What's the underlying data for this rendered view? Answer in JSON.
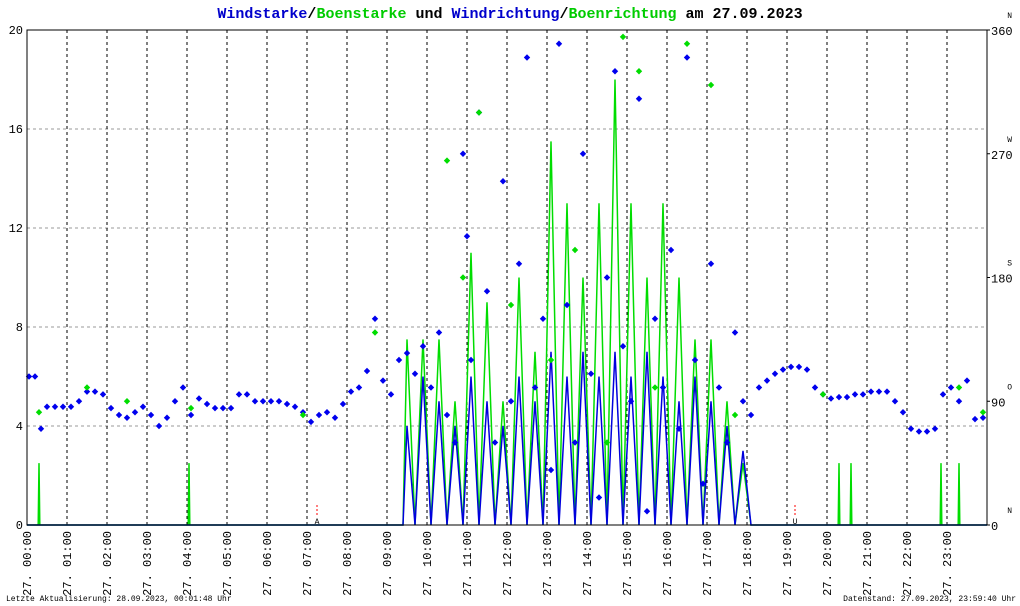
{
  "chart_data": {
    "type": "wind",
    "title_parts": [
      {
        "text": "Windstarke",
        "color": "#0000cc"
      },
      {
        "text": "/",
        "color": "#000000"
      },
      {
        "text": "Boenstarke",
        "color": "#00cc00"
      },
      {
        "text": " und ",
        "color": "#000000"
      },
      {
        "text": "Windrichtung",
        "color": "#0000cc"
      },
      {
        "text": "/",
        "color": "#000000"
      },
      {
        "text": "Boenrichtung",
        "color": "#00cc00"
      },
      {
        "text": " am 27.09.2023",
        "color": "#000000"
      }
    ],
    "footer_left": "Letzte Aktualisierung: 28.09.2023, 00:01:48 Uhr",
    "footer_right": "Datenstand: 27.09.2023, 23:59:40 Uhr",
    "xlim": [
      0,
      24
    ],
    "xticks": [
      {
        "value": 0,
        "label": "27. 00:00"
      },
      {
        "value": 1,
        "label": "27. 01:00"
      },
      {
        "value": 2,
        "label": "27. 02:00"
      },
      {
        "value": 3,
        "label": "27. 03:00"
      },
      {
        "value": 4,
        "label": "27. 04:00"
      },
      {
        "value": 5,
        "label": "27. 05:00"
      },
      {
        "value": 6,
        "label": "27. 06:00"
      },
      {
        "value": 7,
        "label": "27. 07:00"
      },
      {
        "value": 8,
        "label": "27. 08:00"
      },
      {
        "value": 9,
        "label": "27. 09:00"
      },
      {
        "value": 10,
        "label": "27. 10:00"
      },
      {
        "value": 11,
        "label": "27. 11:00"
      },
      {
        "value": 12,
        "label": "27. 12:00"
      },
      {
        "value": 13,
        "label": "27. 13:00"
      },
      {
        "value": 14,
        "label": "27. 14:00"
      },
      {
        "value": 15,
        "label": "27. 15:00"
      },
      {
        "value": 16,
        "label": "27. 16:00"
      },
      {
        "value": 17,
        "label": "27. 17:00"
      },
      {
        "value": 18,
        "label": "27. 18:00"
      },
      {
        "value": 19,
        "label": "27. 19:00"
      },
      {
        "value": 20,
        "label": "27. 20:00"
      },
      {
        "value": 21,
        "label": "27. 21:00"
      },
      {
        "value": 22,
        "label": "27. 22:00"
      },
      {
        "value": 23,
        "label": "27. 23:00"
      }
    ],
    "ylim": [
      0,
      20
    ],
    "yticks": [
      0,
      4,
      8,
      12,
      16,
      20
    ],
    "y2lim": [
      0,
      360
    ],
    "y2ticks": [
      0,
      90,
      180,
      270,
      360
    ],
    "y2_compass": [
      "N",
      "O",
      "S",
      "W",
      "N"
    ],
    "grid": true,
    "annotations": [
      {
        "x": 7.25,
        "text": "A",
        "color": "#ff0000"
      },
      {
        "x": 19.2,
        "text": "U",
        "color": "#ff0000"
      }
    ],
    "series": [
      {
        "name": "Boenstarke",
        "color": "#00dd00",
        "kind": "line",
        "x": [
          0,
          0.28,
          0.3,
          0.32,
          4.03,
          4.05,
          4.07,
          9.4,
          9.5,
          9.7,
          9.9,
          10.1,
          10.3,
          10.5,
          10.7,
          10.9,
          11.1,
          11.3,
          11.5,
          11.7,
          11.9,
          12.1,
          12.3,
          12.5,
          12.7,
          12.9,
          13.1,
          13.3,
          13.5,
          13.7,
          13.9,
          14.1,
          14.3,
          14.5,
          14.7,
          14.9,
          15.1,
          15.3,
          15.5,
          15.7,
          15.9,
          16.1,
          16.3,
          16.5,
          16.7,
          16.9,
          17.1,
          17.3,
          17.5,
          17.7,
          17.9,
          18.1,
          18.3,
          20.28,
          20.3,
          20.32,
          20.58,
          20.6,
          20.62,
          22.83,
          22.85,
          22.87,
          23.28,
          23.3,
          23.32,
          24
        ],
        "values": [
          0,
          0,
          2.5,
          0,
          0,
          2.5,
          0,
          0,
          7.5,
          0,
          7.5,
          0,
          7.5,
          0,
          5,
          0,
          11,
          0,
          9,
          0,
          5,
          0,
          10,
          0,
          7,
          0,
          15.5,
          0,
          13,
          0,
          10,
          0,
          13,
          0,
          18,
          0,
          13,
          0,
          10,
          0,
          13,
          0,
          10,
          0,
          7.5,
          0,
          7.5,
          0,
          5,
          0,
          2.5,
          0,
          0,
          0,
          2.5,
          0,
          0,
          2.5,
          0,
          0,
          2.5,
          0,
          0,
          2.5,
          0,
          0
        ]
      },
      {
        "name": "Windstarke",
        "color": "#0000dd",
        "kind": "line",
        "x": [
          0,
          9.4,
          9.5,
          9.7,
          9.9,
          10.1,
          10.3,
          10.5,
          10.7,
          10.9,
          11.1,
          11.3,
          11.5,
          11.7,
          11.9,
          12.1,
          12.3,
          12.5,
          12.7,
          12.9,
          13.1,
          13.3,
          13.5,
          13.7,
          13.9,
          14.1,
          14.3,
          14.5,
          14.7,
          14.9,
          15.1,
          15.3,
          15.5,
          15.7,
          15.9,
          16.1,
          16.3,
          16.5,
          16.7,
          16.9,
          17.1,
          17.3,
          17.5,
          17.7,
          17.9,
          18.1,
          18.3,
          24
        ],
        "values": [
          0,
          0,
          4,
          0,
          6,
          0,
          5,
          0,
          4,
          0,
          6,
          0,
          5,
          0,
          4,
          0,
          6,
          0,
          5,
          0,
          7,
          0,
          6,
          0,
          7,
          0,
          6,
          0,
          7,
          0,
          6,
          0,
          7,
          0,
          6,
          0,
          5,
          0,
          6,
          0,
          5,
          0,
          4,
          0,
          3,
          0,
          0,
          0
        ]
      },
      {
        "name": "Windrichtung",
        "color": "#0000ee",
        "kind": "scatter",
        "axis": "y2",
        "x": [
          0.05,
          0.2,
          0.35,
          0.5,
          0.7,
          0.9,
          1.1,
          1.3,
          1.5,
          1.7,
          1.9,
          2.1,
          2.3,
          2.5,
          2.7,
          2.9,
          3.1,
          3.3,
          3.5,
          3.7,
          3.9,
          4.1,
          4.3,
          4.5,
          4.7,
          4.9,
          5.1,
          5.3,
          5.5,
          5.7,
          5.9,
          6.1,
          6.3,
          6.5,
          6.7,
          6.9,
          7.1,
          7.3,
          7.5,
          7.7,
          7.9,
          8.1,
          8.3,
          8.5,
          8.7,
          8.9,
          9.1,
          9.3,
          9.5,
          9.7,
          9.9,
          10.1,
          10.3,
          10.5,
          10.7,
          10.9,
          11.0,
          11.1,
          11.3,
          11.5,
          11.7,
          11.9,
          12.1,
          12.3,
          12.5,
          12.7,
          12.9,
          13.1,
          13.3,
          13.5,
          13.7,
          13.9,
          14.1,
          14.3,
          14.5,
          14.7,
          14.9,
          15.1,
          15.3,
          15.5,
          15.7,
          15.9,
          16.1,
          16.3,
          16.5,
          16.7,
          16.9,
          17.1,
          17.3,
          17.5,
          17.7,
          17.9,
          18.1,
          18.3,
          18.5,
          18.7,
          18.9,
          19.1,
          19.3,
          19.5,
          19.7,
          19.9,
          20.1,
          20.3,
          20.5,
          20.7,
          20.9,
          21.1,
          21.3,
          21.5,
          21.7,
          21.9,
          22.1,
          22.3,
          22.5,
          22.7,
          22.9,
          23.1,
          23.3,
          23.5,
          23.7,
          23.9
        ],
        "values": [
          108,
          108,
          70,
          86,
          86,
          86,
          86,
          90,
          97,
          97,
          95,
          85,
          80,
          78,
          82,
          86,
          80,
          72,
          78,
          90,
          100,
          80,
          92,
          88,
          85,
          85,
          85,
          95,
          95,
          90,
          90,
          90,
          90,
          88,
          86,
          82,
          75,
          80,
          82,
          78,
          88,
          97,
          100,
          112,
          150,
          105,
          95,
          120,
          125,
          110,
          130,
          100,
          140,
          80,
          60,
          270,
          210,
          120,
          300,
          170,
          60,
          250,
          90,
          190,
          340,
          100,
          150,
          40,
          350,
          160,
          60,
          270,
          110,
          20,
          180,
          330,
          130,
          90,
          310,
          10,
          150,
          100,
          200,
          70,
          340,
          120,
          30,
          190,
          100,
          60,
          140,
          90,
          80,
          100,
          105,
          110,
          113,
          115,
          115,
          113,
          100,
          95,
          92,
          93,
          93,
          95,
          95,
          97,
          97,
          97,
          90,
          82,
          70,
          68,
          68,
          70,
          95,
          100,
          90,
          105,
          77,
          78
        ]
      },
      {
        "name": "Boenrichtung",
        "color": "#00dd00",
        "kind": "scatter",
        "axis": "y2",
        "x": [
          0.3,
          1.5,
          2.5,
          4.1,
          6.9,
          8.7,
          10.5,
          10.9,
          11.3,
          12.1,
          13.1,
          13.7,
          14.5,
          14.9,
          15.3,
          15.7,
          16.5,
          17.1,
          17.7,
          19.9,
          23.3,
          23.9
        ],
        "values": [
          82,
          100,
          90,
          85,
          80,
          140,
          265,
          180,
          300,
          160,
          120,
          200,
          60,
          355,
          330,
          100,
          350,
          320,
          80,
          95,
          100,
          82
        ]
      }
    ]
  }
}
